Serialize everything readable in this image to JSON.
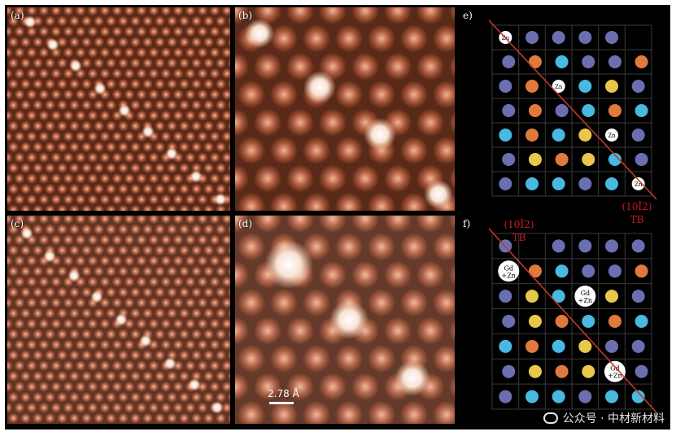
{
  "panels": {
    "a": {
      "label": "(a)"
    },
    "b": {
      "label": "(b)"
    },
    "c": {
      "label": "(c)"
    },
    "d": {
      "label": "(d)",
      "scale": "2.78 Å"
    },
    "e": {
      "label": "e)"
    },
    "f": {
      "label": "f)"
    }
  },
  "tb": {
    "left": {
      "plane": "(10Ī2)",
      "tb": "TB"
    },
    "right": {
      "plane": "(10Ī2)",
      "tb": "TB"
    }
  },
  "atoms": {
    "zn": "Zn",
    "gd_zn": [
      "Gd",
      "+Zn"
    ]
  },
  "colors": {
    "stm_bg": "#5a2a18",
    "stm_atom": "#d98a6a",
    "purple": "#6b6fb0",
    "cyan": "#48b9e0",
    "orange": "#e07a3c",
    "yellow": "#e8c84a",
    "twin_line": "#c0392b"
  },
  "watermark": {
    "icon": "wechat-icon",
    "text": "公众号 · 中材新材料"
  }
}
